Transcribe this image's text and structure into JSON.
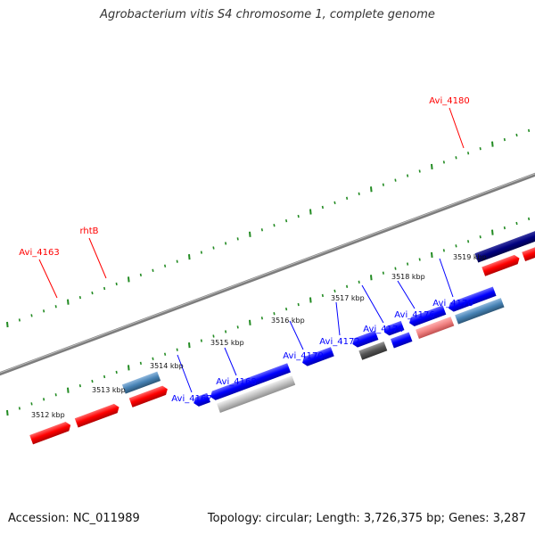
{
  "title": "Agrobacterium vitis S4 chromosome 1, complete genome",
  "footer": {
    "accession": "Accession: NC_011989",
    "summary": "Topology: circular; Length: 3,726,375 bp; Genes: 3,287"
  },
  "colors": {
    "forward_gene": "#ff0000",
    "reverse_gene": "#0000ff",
    "navy_gene": "#000080",
    "steel_gene": "#4682b4",
    "gray_gene": "#555555",
    "silver_gene": "#c0c0c0",
    "salmon_gene": "#f08080",
    "tick": "#228b22",
    "backbone": "#888888"
  },
  "ticks": [
    {
      "label": "3512 kbp"
    },
    {
      "label": "3513 kbp"
    },
    {
      "label": "3514 kbp"
    },
    {
      "label": "3515 kbp"
    },
    {
      "label": "3516 kbp"
    },
    {
      "label": "3517 kbp"
    },
    {
      "label": "3518 kbp"
    },
    {
      "label": "3519 kbp"
    }
  ],
  "gene_labels": [
    {
      "name": "Avi_4180",
      "strand": "forward"
    },
    {
      "name": "rhtB",
      "strand": "forward"
    },
    {
      "name": "Avi_4163",
      "strand": "forward"
    },
    {
      "name": "Avi_4167",
      "strand": "reverse"
    },
    {
      "name": "Avi_4168",
      "strand": "reverse"
    },
    {
      "name": "Avi_4170",
      "strand": "reverse"
    },
    {
      "name": "Avi_4172",
      "strand": "reverse"
    },
    {
      "name": "Avi_4174",
      "strand": "reverse"
    },
    {
      "name": "Avi_4176",
      "strand": "reverse"
    },
    {
      "name": "Avi_4178",
      "strand": "reverse"
    }
  ]
}
